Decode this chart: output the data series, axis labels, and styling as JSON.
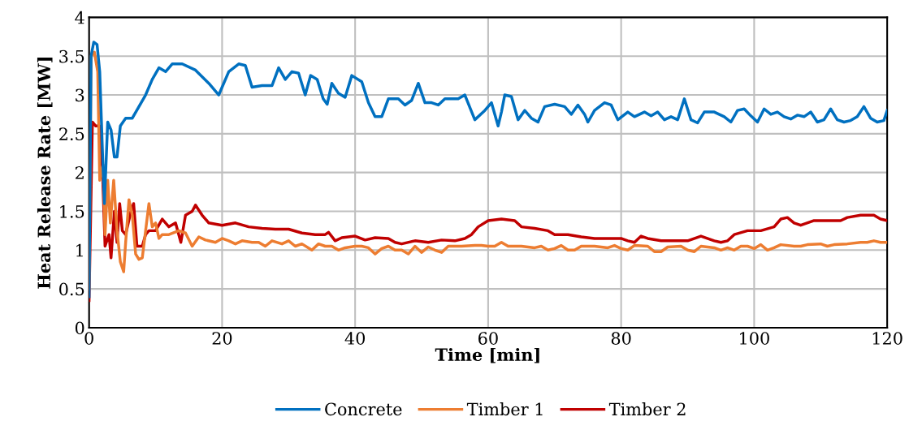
{
  "chart_data": {
    "type": "line",
    "xlabel": "Time [min]",
    "ylabel": "Heat Release Rate [MW]",
    "xlim": [
      0,
      120
    ],
    "xticks": [
      0,
      20,
      40,
      60,
      80,
      100,
      120
    ],
    "ylim": [
      0,
      4
    ],
    "yticks": [
      0,
      0.5,
      1,
      1.5,
      2,
      2.5,
      3,
      3.5,
      4
    ],
    "grid": true,
    "legend": "bottom",
    "marker": "none",
    "line_style": "solid",
    "series": [
      {
        "name": "Concrete",
        "color": "#0070c0",
        "x": [
          0,
          0.3,
          0.7,
          1.2,
          1.6,
          2,
          2.3,
          2.8,
          3.3,
          3.8,
          4.2,
          4.7,
          5.5,
          6.5,
          7.5,
          8.5,
          9.5,
          10.5,
          11.5,
          12.5,
          14,
          16,
          18,
          19.5,
          21,
          22.5,
          23.5,
          24.5,
          26,
          27.5,
          28.5,
          29.5,
          30.5,
          31.5,
          32.5,
          33.3,
          34.3,
          35.2,
          35.8,
          36.5,
          37.5,
          38.5,
          39.5,
          41,
          42,
          43,
          44,
          45,
          46.5,
          47.5,
          48.5,
          49.5,
          50.5,
          51.5,
          52.5,
          53.5,
          55.5,
          56.5,
          58,
          59.5,
          60.5,
          61.5,
          62,
          62.5,
          63.5,
          64.5,
          65.5,
          66.5,
          67.5,
          68.5,
          70,
          71.5,
          72.5,
          73.5,
          74.5,
          75,
          76,
          77.5,
          78.5,
          79.5,
          81,
          82,
          83.5,
          84.5,
          85.5,
          86.5,
          87.5,
          88.5,
          89.5,
          90.5,
          91.5,
          92.5,
          94,
          95.5,
          96.5,
          97.5,
          98.5,
          99.5,
          100.5,
          101.5,
          102.5,
          103.5,
          104.5,
          105.5,
          106.5,
          107.5,
          108.5,
          109.5,
          110.5,
          111.5,
          112.5,
          113.5,
          114.5,
          115.5,
          116.5,
          117.5,
          118.5,
          119.5,
          120
        ],
        "values": [
          0.4,
          3.5,
          3.68,
          3.65,
          3.3,
          2.3,
          1.6,
          2.65,
          2.55,
          2.2,
          2.2,
          2.6,
          2.7,
          2.7,
          2.85,
          3.0,
          3.2,
          3.35,
          3.3,
          3.4,
          3.4,
          3.32,
          3.15,
          3.0,
          3.3,
          3.4,
          3.38,
          3.1,
          3.12,
          3.12,
          3.35,
          3.2,
          3.3,
          3.28,
          3.0,
          3.25,
          3.2,
          2.95,
          2.88,
          3.15,
          3.02,
          2.97,
          3.25,
          3.17,
          2.9,
          2.72,
          2.72,
          2.95,
          2.95,
          2.87,
          2.93,
          3.15,
          2.9,
          2.9,
          2.87,
          2.95,
          2.95,
          3.0,
          2.68,
          2.8,
          2.9,
          2.6,
          2.78,
          3.0,
          2.98,
          2.68,
          2.8,
          2.7,
          2.65,
          2.85,
          2.88,
          2.85,
          2.75,
          2.87,
          2.75,
          2.65,
          2.8,
          2.9,
          2.87,
          2.68,
          2.78,
          2.72,
          2.78,
          2.73,
          2.78,
          2.68,
          2.72,
          2.68,
          2.95,
          2.68,
          2.64,
          2.78,
          2.78,
          2.72,
          2.65,
          2.8,
          2.82,
          2.73,
          2.65,
          2.82,
          2.75,
          2.78,
          2.72,
          2.69,
          2.74,
          2.72,
          2.78,
          2.65,
          2.68,
          2.82,
          2.68,
          2.65,
          2.67,
          2.72,
          2.85,
          2.7,
          2.65,
          2.67,
          2.8
        ]
      },
      {
        "name": "Timber 1",
        "color": "#ed7d31",
        "x": [
          0,
          0.3,
          0.8,
          1.3,
          1.6,
          2.1,
          2.4,
          2.8,
          3.2,
          3.7,
          4.2,
          4.7,
          5.2,
          5.5,
          6,
          6.5,
          7,
          7.5,
          8,
          8.5,
          9,
          9.5,
          10,
          10.5,
          11,
          12,
          13.5,
          14.5,
          15.5,
          16.5,
          17.5,
          19,
          20,
          21,
          22,
          23,
          24.5,
          25.5,
          26.5,
          27.5,
          29,
          30,
          31,
          32,
          33.5,
          34.5,
          35.5,
          36.5,
          37.5,
          38.5,
          40,
          41,
          42,
          43,
          44,
          45,
          46,
          47,
          48,
          49,
          50,
          51,
          52,
          53,
          54,
          56,
          58,
          59,
          60,
          61,
          62,
          63,
          65,
          67,
          68,
          69,
          70,
          71,
          72,
          73,
          74,
          76,
          78,
          79,
          80,
          81,
          82,
          84,
          85,
          86,
          87,
          89,
          90,
          91,
          92,
          94,
          95,
          96,
          97,
          98,
          99,
          100,
          101,
          102,
          103,
          104,
          106,
          107,
          108,
          110,
          111,
          112,
          114,
          116,
          117,
          118,
          119,
          120
        ],
        "values": [
          0.5,
          3.5,
          3.55,
          3.3,
          1.9,
          2.1,
          1.2,
          1.9,
          1.35,
          1.9,
          1.25,
          0.85,
          0.72,
          1.1,
          1.65,
          1.45,
          0.95,
          0.88,
          0.9,
          1.25,
          1.6,
          1.3,
          1.35,
          1.15,
          1.2,
          1.2,
          1.25,
          1.22,
          1.05,
          1.17,
          1.13,
          1.1,
          1.15,
          1.12,
          1.08,
          1.12,
          1.1,
          1.1,
          1.05,
          1.12,
          1.08,
          1.12,
          1.05,
          1.08,
          1.0,
          1.08,
          1.05,
          1.05,
          1.0,
          1.03,
          1.05,
          1.05,
          1.03,
          0.95,
          1.02,
          1.05,
          1.0,
          1.0,
          0.95,
          1.05,
          0.97,
          1.04,
          1.0,
          0.97,
          1.05,
          1.05,
          1.06,
          1.06,
          1.05,
          1.05,
          1.1,
          1.05,
          1.05,
          1.03,
          1.05,
          1.0,
          1.02,
          1.06,
          1.0,
          1.0,
          1.05,
          1.05,
          1.03,
          1.06,
          1.02,
          1.0,
          1.06,
          1.05,
          0.98,
          0.98,
          1.04,
          1.05,
          1.0,
          0.98,
          1.05,
          1.03,
          1.0,
          1.03,
          1.0,
          1.05,
          1.05,
          1.02,
          1.07,
          1.0,
          1.03,
          1.07,
          1.05,
          1.05,
          1.07,
          1.08,
          1.05,
          1.07,
          1.08,
          1.1,
          1.1,
          1.12,
          1.1,
          1.1
        ]
      },
      {
        "name": "Timber 2",
        "color": "#c00000",
        "x": [
          0,
          0.5,
          1,
          1.6,
          2,
          2.4,
          3,
          3.3,
          3.8,
          4.2,
          4.6,
          5,
          5.5,
          6.3,
          6.7,
          7.2,
          8,
          8.5,
          9,
          10,
          11,
          12,
          13,
          13.8,
          14.5,
          15.5,
          16,
          17,
          18,
          20,
          22,
          24,
          26,
          28,
          30,
          32,
          34,
          35.5,
          36,
          37,
          38,
          40,
          41.5,
          43,
          45,
          46,
          47,
          49,
          51,
          53,
          55,
          56.5,
          57.5,
          58.5,
          60,
          62,
          64,
          65,
          67,
          69,
          70,
          72,
          74,
          76,
          78,
          80,
          81,
          82,
          83,
          84,
          86,
          90,
          92,
          94,
          95,
          96,
          97,
          99,
          101,
          103,
          104,
          105,
          106,
          107,
          109,
          113,
          114,
          116,
          118,
          119,
          120
        ],
        "values": [
          0.35,
          2.65,
          2.6,
          2.6,
          2.05,
          1.05,
          1.2,
          0.9,
          1.5,
          1.1,
          1.6,
          1.25,
          1.2,
          1.5,
          1.6,
          1.05,
          1.05,
          1.2,
          1.25,
          1.25,
          1.4,
          1.3,
          1.35,
          1.1,
          1.45,
          1.5,
          1.58,
          1.45,
          1.35,
          1.32,
          1.35,
          1.3,
          1.28,
          1.27,
          1.27,
          1.22,
          1.2,
          1.2,
          1.23,
          1.12,
          1.16,
          1.18,
          1.13,
          1.16,
          1.15,
          1.1,
          1.08,
          1.12,
          1.1,
          1.13,
          1.12,
          1.15,
          1.2,
          1.3,
          1.38,
          1.4,
          1.38,
          1.3,
          1.28,
          1.25,
          1.2,
          1.2,
          1.17,
          1.15,
          1.15,
          1.15,
          1.12,
          1.1,
          1.18,
          1.15,
          1.12,
          1.12,
          1.18,
          1.12,
          1.1,
          1.12,
          1.2,
          1.25,
          1.25,
          1.3,
          1.4,
          1.42,
          1.35,
          1.32,
          1.38,
          1.38,
          1.42,
          1.45,
          1.45,
          1.4,
          1.38
        ]
      }
    ]
  }
}
